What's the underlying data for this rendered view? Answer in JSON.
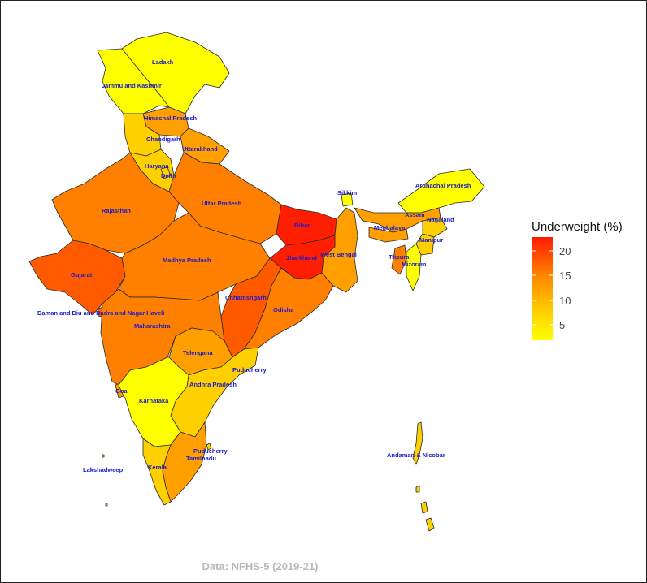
{
  "legend": {
    "title": "Underweight (%)",
    "ticks": [
      "20",
      "15",
      "10",
      "5"
    ],
    "gradient": [
      "#ff1a00",
      "#ff8c00",
      "#ffd400",
      "#ffff00"
    ]
  },
  "caption": "Data: NFHS-5 (2019-21)",
  "colors": {
    "low": "#ffff00",
    "mid_low": "#ffd000",
    "mid": "#ffa000",
    "mid_high": "#ff8000",
    "high": "#ff5a00",
    "highest": "#ff1e00"
  },
  "regions": [
    {
      "name": "Ladakh",
      "underweight_band": "low"
    },
    {
      "name": "Jammu and Kashmir",
      "underweight_band": "low"
    },
    {
      "name": "Himachal Pradesh",
      "underweight_band": "mid"
    },
    {
      "name": "Chandigarh",
      "underweight_band": "mid_low"
    },
    {
      "name": "Uttarakhand",
      "underweight_band": "mid"
    },
    {
      "name": "Haryana",
      "underweight_band": "mid_low"
    },
    {
      "name": "Delhi",
      "underweight_band": "mid_low"
    },
    {
      "name": "Uttar Pradesh",
      "underweight_band": "mid_high"
    },
    {
      "name": "Rajasthan",
      "underweight_band": "mid_high"
    },
    {
      "name": "Bihar",
      "underweight_band": "highest"
    },
    {
      "name": "Sikkim",
      "underweight_band": "low"
    },
    {
      "name": "Arunachal Pradesh",
      "underweight_band": "low"
    },
    {
      "name": "Assam",
      "underweight_band": "mid"
    },
    {
      "name": "Nagaland",
      "underweight_band": "mid_low"
    },
    {
      "name": "Meghalaya",
      "underweight_band": "mid"
    },
    {
      "name": "Manipur",
      "underweight_band": "mid_low"
    },
    {
      "name": "Tripura",
      "underweight_band": "mid_high"
    },
    {
      "name": "Mizoram",
      "underweight_band": "low"
    },
    {
      "name": "West Bengal",
      "underweight_band": "mid"
    },
    {
      "name": "Jharkhand",
      "underweight_band": "highest"
    },
    {
      "name": "Gujarat",
      "underweight_band": "high"
    },
    {
      "name": "Madhya Pradesh",
      "underweight_band": "mid_high"
    },
    {
      "name": "Chhattishgarh",
      "underweight_band": "high"
    },
    {
      "name": "Odisha",
      "underweight_band": "mid_high"
    },
    {
      "name": "Daman and Diu and Dadra and Nagar Haveli",
      "underweight_band": "high"
    },
    {
      "name": "Maharashtra",
      "underweight_band": "mid_high"
    },
    {
      "name": "Telengana",
      "underweight_band": "mid"
    },
    {
      "name": "Puducherry",
      "underweight_band": "mid_low"
    },
    {
      "name": "Andhra Pradesh",
      "underweight_band": "mid"
    },
    {
      "name": "Goa",
      "underweight_band": "low"
    },
    {
      "name": "Karnataka",
      "underweight_band": "mid"
    },
    {
      "name": "Tamilnadu",
      "underweight_band": "mid_low"
    },
    {
      "name": "Kerala",
      "underweight_band": "mid_low"
    },
    {
      "name": "Lakshadweep",
      "underweight_band": "low"
    },
    {
      "name": "Andaman & Nicobar",
      "underweight_band": "mid_low"
    }
  ]
}
